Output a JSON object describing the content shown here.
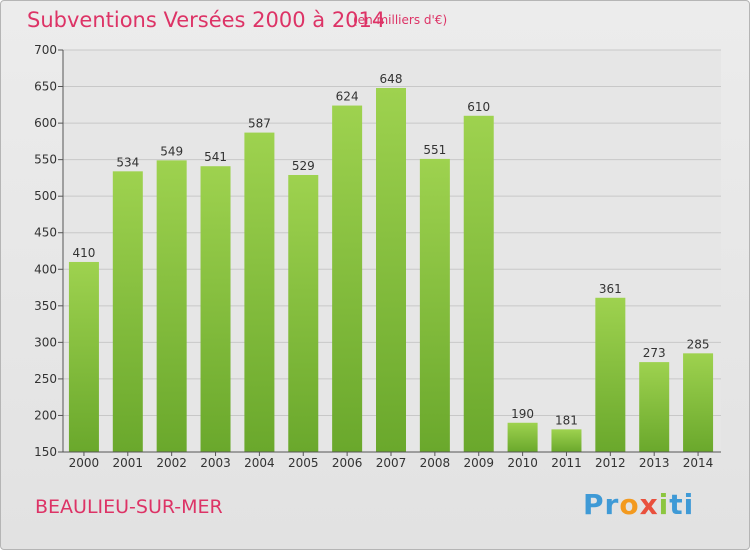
{
  "header": {
    "title": "Subventions Versées 2000 à 2014",
    "subtitle": "(en milliers d'€)"
  },
  "footer": {
    "place": "BEAULIEU-SUR-MER",
    "brand_parts": [
      "Pr",
      "o",
      "x",
      "i",
      "ti"
    ]
  },
  "chart_data": {
    "type": "bar",
    "title": "Subventions Versées 2000 à 2014",
    "subtitle": "(en milliers d'€)",
    "categories": [
      "2000",
      "2001",
      "2002",
      "2003",
      "2004",
      "2005",
      "2006",
      "2007",
      "2008",
      "2009",
      "2010",
      "2011",
      "2012",
      "2013",
      "2014"
    ],
    "values": [
      410,
      534,
      549,
      541,
      587,
      529,
      624,
      648,
      551,
      610,
      190,
      181,
      361,
      273,
      285
    ],
    "ylim": [
      150,
      700
    ],
    "yticks": [
      150,
      200,
      250,
      300,
      350,
      400,
      450,
      500,
      550,
      600,
      650,
      700
    ],
    "grid": true,
    "legend": "none",
    "bar_color": "#86c440",
    "bar_color_light": "#9ed24f",
    "bar_color_dark": "#6aa82c"
  }
}
